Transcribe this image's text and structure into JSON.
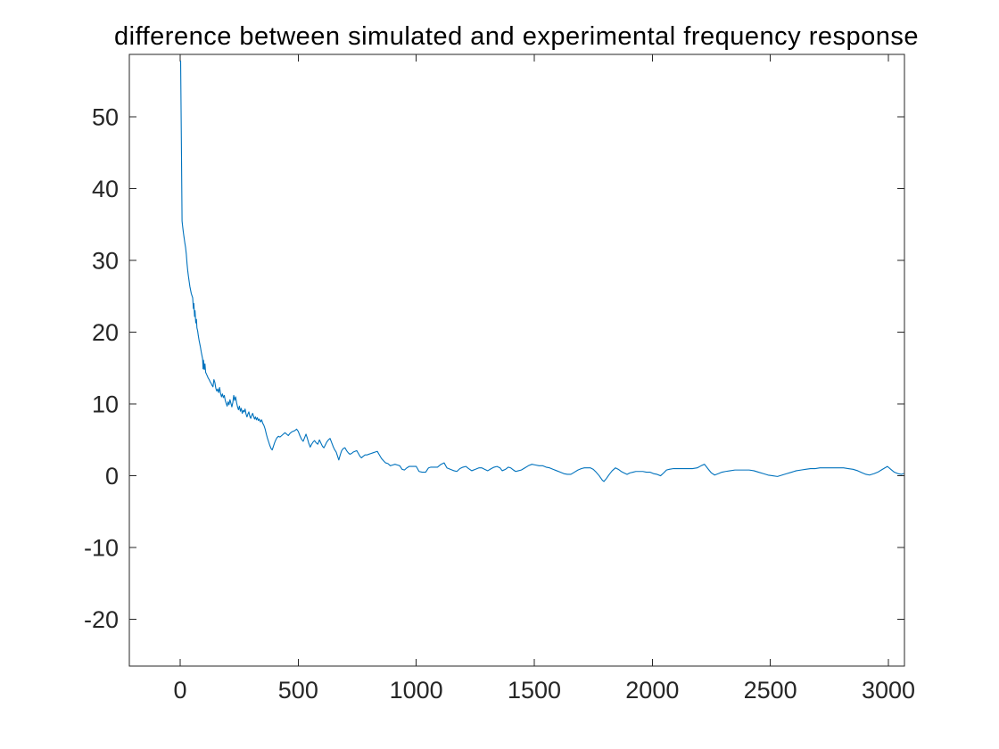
{
  "figure": {
    "background": "#ffffff"
  },
  "chart_data": {
    "type": "line",
    "title": "difference between simulated and experimental frequency response",
    "xlabel": "",
    "ylabel": "",
    "xlim": [
      -215.3,
      3068
    ],
    "ylim": [
      -26.52,
      58.72
    ],
    "xticks": [
      0,
      500,
      1000,
      1500,
      2000,
      2500,
      3000
    ],
    "yticks": [
      -20,
      -10,
      0,
      10,
      20,
      30,
      40,
      50
    ],
    "grid": false,
    "box": true,
    "tick_dir": "in",
    "legend": null,
    "line_color": "#0072BD",
    "axis_color": "#262626",
    "title_color": "#000000",
    "series": [
      {
        "name": "difference",
        "x": [
          2,
          5,
          8,
          11,
          14,
          17,
          20,
          23,
          26,
          29,
          32,
          35,
          38,
          41,
          44,
          47,
          50,
          53,
          56,
          58,
          61,
          63,
          66,
          69,
          71,
          74,
          77,
          80,
          83,
          86,
          89,
          92,
          95,
          97,
          99,
          102,
          105,
          108,
          111,
          115,
          119,
          123,
          127,
          131,
          135,
          139,
          143,
          147,
          151,
          155,
          159,
          163,
          167,
          171,
          175,
          179,
          183,
          187,
          191,
          195,
          199,
          203,
          207,
          211,
          215,
          219,
          223,
          227,
          231,
          235,
          239,
          243,
          247,
          251,
          255,
          259,
          263,
          267,
          271,
          275,
          279,
          283,
          287,
          291,
          295,
          299,
          303,
          307,
          311,
          315,
          319,
          323,
          327,
          331,
          335,
          340,
          345,
          350,
          355,
          360,
          365,
          370,
          375,
          380,
          385,
          390,
          395,
          400,
          405,
          410,
          416,
          423,
          430,
          437,
          444,
          451,
          458,
          465,
          472,
          479,
          486,
          493,
          500,
          507,
          514,
          521,
          527,
          533,
          539,
          545,
          551,
          557,
          563,
          569,
          576,
          583,
          590,
          597,
          603,
          609,
          615,
          621,
          628,
          635,
          642,
          649,
          655,
          661,
          666,
          672,
          678,
          684,
          691,
          698,
          705,
          712,
          719,
          726,
          733,
          740,
          748,
          755,
          762,
          768,
          775,
          783,
          791,
          799,
          808,
          817,
          826,
          835,
          844,
          853,
          861,
          870,
          880,
          890,
          900,
          910,
          920,
          930,
          940,
          950,
          960,
          970,
          985,
          1000,
          1012,
          1025,
          1040,
          1052,
          1062,
          1075,
          1090,
          1105,
          1118,
          1130,
          1145,
          1160,
          1172,
          1185,
          1198,
          1210,
          1222,
          1235,
          1250,
          1265,
          1278,
          1290,
          1303,
          1318,
          1330,
          1342,
          1355,
          1364,
          1378,
          1390,
          1400,
          1412,
          1421,
          1433,
          1445,
          1460,
          1475,
          1490,
          1505,
          1520,
          1535,
          1550,
          1565,
          1580,
          1595,
          1610,
          1625,
          1640,
          1655,
          1670,
          1685,
          1700,
          1712,
          1725,
          1738,
          1750,
          1762,
          1775,
          1788,
          1795,
          1805,
          1818,
          1830,
          1844,
          1856,
          1868,
          1880,
          1893,
          1905,
          1918,
          1930,
          1945,
          1960,
          1975,
          1990,
          2005,
          2020,
          2035,
          2048,
          2060,
          2072,
          2090,
          2110,
          2130,
          2150,
          2170,
          2190,
          2207,
          2221,
          2235,
          2250,
          2264,
          2280,
          2295,
          2310,
          2330,
          2350,
          2370,
          2390,
          2410,
          2430,
          2450,
          2470,
          2490,
          2510,
          2530,
          2550,
          2570,
          2590,
          2610,
          2630,
          2650,
          2670,
          2690,
          2710,
          2730,
          2750,
          2770,
          2790,
          2810,
          2830,
          2850,
          2870,
          2890,
          2905,
          2920,
          2940,
          2955,
          2970,
          2985,
          2996,
          3010,
          3025,
          3040,
          3055,
          3064
        ],
        "y": [
          57.8,
          47.0,
          35.5,
          34.6,
          33.8,
          33.1,
          32.4,
          31.8,
          30.9,
          29.6,
          28.6,
          27.8,
          27.1,
          26.4,
          25.9,
          25.4,
          25.1,
          24.8,
          23.3,
          24.0,
          22.2,
          23.0,
          21.3,
          21.8,
          20.6,
          20.2,
          19.5,
          18.9,
          18.4,
          17.9,
          17.3,
          16.8,
          16.3,
          14.9,
          16.1,
          14.8,
          15.6,
          14.4,
          14.2,
          13.9,
          13.6,
          13.4,
          13.1,
          12.9,
          12.6,
          12.4,
          13.4,
          13.0,
          12.2,
          11.8,
          12.1,
          11.6,
          12.3,
          11.5,
          11.0,
          11.4,
          10.9,
          11.2,
          10.5,
          10.1,
          9.7,
          10.3,
          9.9,
          10.6,
          10.1,
          9.6,
          10.2,
          11.2,
          10.5,
          11.0,
          10.2,
          9.6,
          9.2,
          9.7,
          9.0,
          9.4,
          8.7,
          9.1,
          8.9,
          9.3,
          8.6,
          8.2,
          8.6,
          8.9,
          8.3,
          8.0,
          8.4,
          8.7,
          8.3,
          7.9,
          8.2,
          7.8,
          8.1,
          7.7,
          7.9,
          7.5,
          7.8,
          7.3,
          7.0,
          6.5,
          5.8,
          5.2,
          4.7,
          4.2,
          3.8,
          3.6,
          4.1,
          4.6,
          5.0,
          5.3,
          5.5,
          5.4,
          5.6,
          5.8,
          6.0,
          5.8,
          5.6,
          5.9,
          6.1,
          6.2,
          6.3,
          6.5,
          6.2,
          5.6,
          5.1,
          4.8,
          5.3,
          5.8,
          5.2,
          4.5,
          4.0,
          4.4,
          4.7,
          4.9,
          4.6,
          4.4,
          5.0,
          4.5,
          4.1,
          3.9,
          4.3,
          4.7,
          5.0,
          5.2,
          4.6,
          4.0,
          3.6,
          3.3,
          2.8,
          2.2,
          2.9,
          3.5,
          3.8,
          3.9,
          3.5,
          3.2,
          3.0,
          3.1,
          3.3,
          3.4,
          3.5,
          3.1,
          2.7,
          2.5,
          2.7,
          2.9,
          2.9,
          3.0,
          3.1,
          3.2,
          3.3,
          3.4,
          2.9,
          2.4,
          2.1,
          1.8,
          1.7,
          1.4,
          1.5,
          1.6,
          1.5,
          1.4,
          0.9,
          0.8,
          1.1,
          1.3,
          1.3,
          1.3,
          0.6,
          0.5,
          0.5,
          1.1,
          1.2,
          1.2,
          1.2,
          1.6,
          1.8,
          1.1,
          0.9,
          0.7,
          0.6,
          1.0,
          1.2,
          1.3,
          1.0,
          0.7,
          0.9,
          1.1,
          1.1,
          0.9,
          0.7,
          1.0,
          1.2,
          1.3,
          1.1,
          0.7,
          0.9,
          1.2,
          1.1,
          0.8,
          0.6,
          0.7,
          0.8,
          1.1,
          1.4,
          1.6,
          1.5,
          1.4,
          1.4,
          1.2,
          1.1,
          0.9,
          0.7,
          0.5,
          0.3,
          0.2,
          0.2,
          0.5,
          0.8,
          1.0,
          1.1,
          1.1,
          1.1,
          0.9,
          0.5,
          0.0,
          -0.6,
          -0.8,
          -0.4,
          0.2,
          0.7,
          1.1,
          0.9,
          0.6,
          0.4,
          0.2,
          0.4,
          0.5,
          0.6,
          0.6,
          0.6,
          0.5,
          0.5,
          0.3,
          0.2,
          0.0,
          0.4,
          0.8,
          0.9,
          1.0,
          1.0,
          1.0,
          1.0,
          1.0,
          1.1,
          1.4,
          1.6,
          1.0,
          0.4,
          0.1,
          0.3,
          0.5,
          0.6,
          0.7,
          0.8,
          0.8,
          0.8,
          0.8,
          0.7,
          0.5,
          0.3,
          0.1,
          0.0,
          -0.1,
          0.1,
          0.3,
          0.5,
          0.7,
          0.8,
          0.9,
          1.0,
          1.0,
          1.1,
          1.1,
          1.1,
          1.1,
          1.1,
          1.1,
          1.0,
          0.9,
          0.7,
          0.4,
          0.2,
          0.1,
          0.3,
          0.5,
          0.8,
          1.1,
          1.3,
          0.9,
          0.5,
          0.3,
          0.2,
          0.3
        ]
      }
    ]
  }
}
